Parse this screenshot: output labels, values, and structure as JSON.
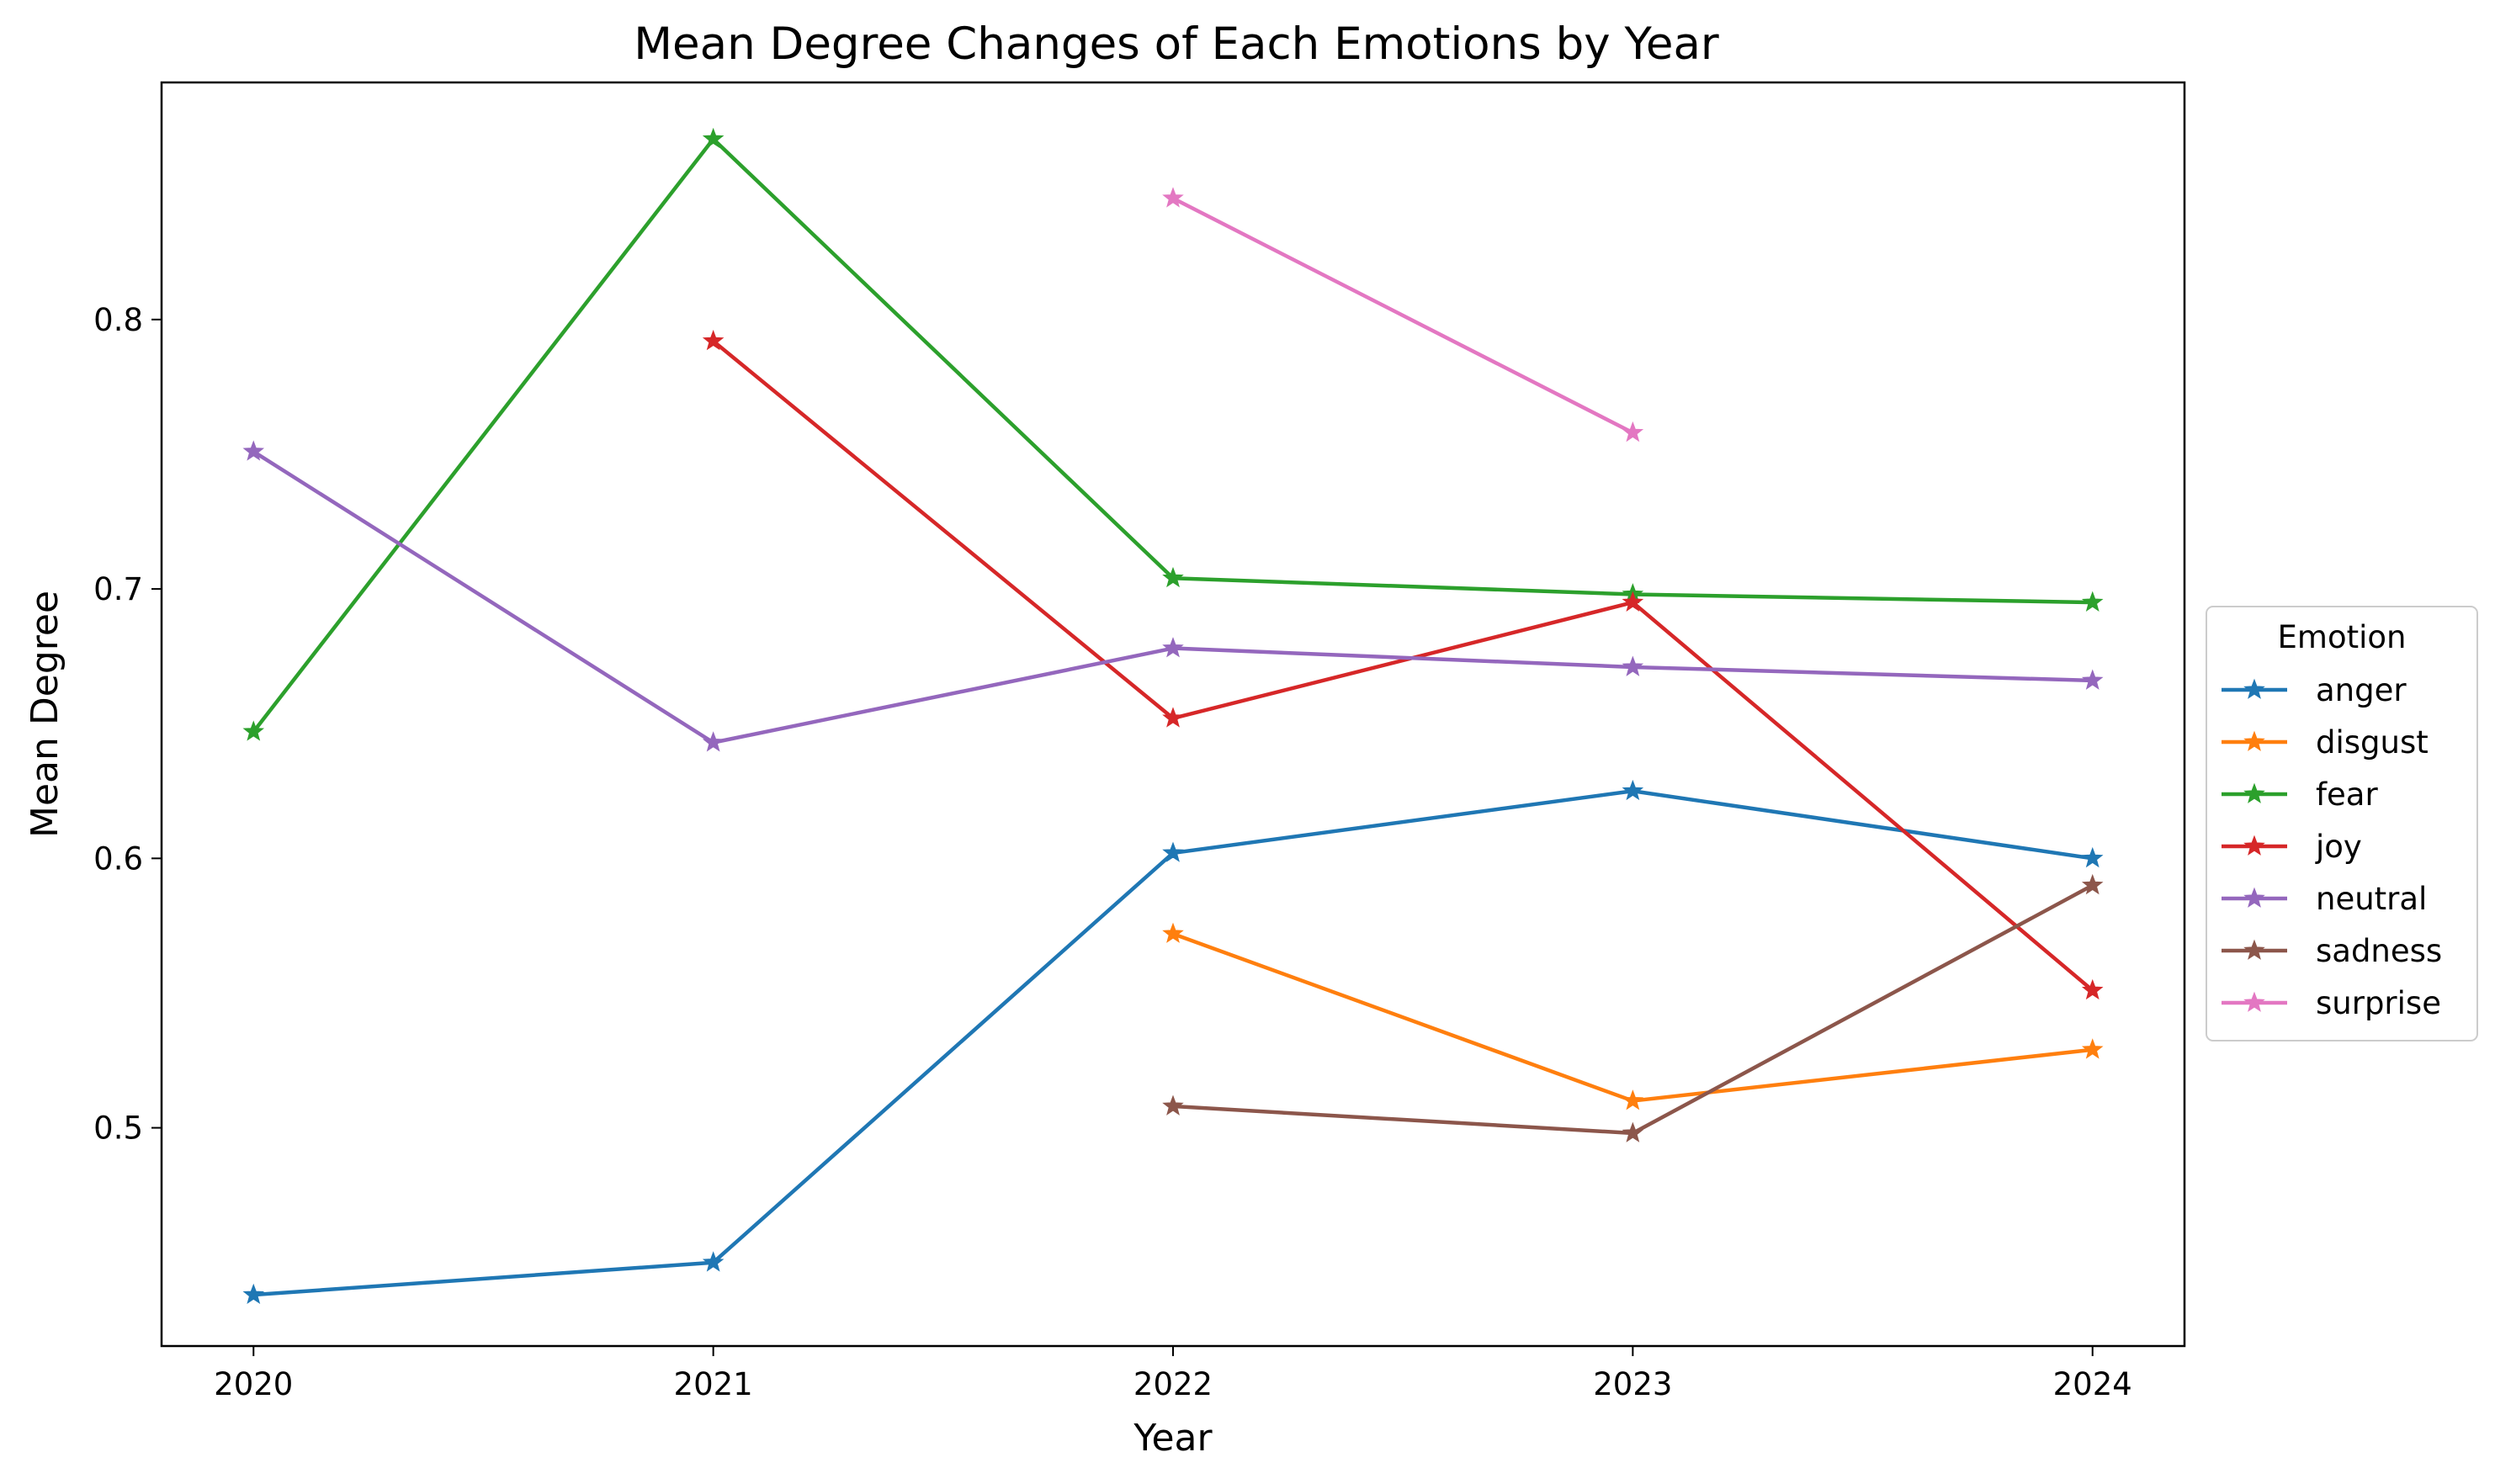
{
  "chart_data": {
    "type": "line",
    "title": "Mean Degree Changes of Each Emotions by Year",
    "xlabel": "Year",
    "ylabel": "Mean Degree",
    "x": [
      2020,
      2021,
      2022,
      2023,
      2024
    ],
    "x_tick_labels": [
      "2020",
      "2021",
      "2022",
      "2023",
      "2024"
    ],
    "xlim": [
      2019.8,
      2024.2
    ],
    "ylim": [
      0.419,
      0.888
    ],
    "y_ticks": [
      0.5,
      0.6,
      0.7,
      0.8
    ],
    "y_tick_labels": [
      "0.5",
      "0.6",
      "0.7",
      "0.8"
    ],
    "grid": false,
    "marker": "star",
    "legend": {
      "title": "Emotion",
      "placement": "center-right-outside"
    },
    "series": [
      {
        "name": "anger",
        "color": "#1f77b4",
        "values": [
          0.438,
          0.45,
          0.602,
          0.625,
          0.6
        ]
      },
      {
        "name": "disgust",
        "color": "#ff7f0e",
        "values": [
          null,
          null,
          0.572,
          0.51,
          0.529
        ]
      },
      {
        "name": "fear",
        "color": "#2ca02c",
        "values": [
          0.647,
          0.867,
          0.704,
          0.698,
          0.695
        ]
      },
      {
        "name": "joy",
        "color": "#d62728",
        "values": [
          null,
          0.792,
          0.652,
          0.695,
          0.551
        ]
      },
      {
        "name": "neutral",
        "color": "#9467bd",
        "values": [
          0.751,
          0.643,
          0.678,
          0.671,
          0.666
        ]
      },
      {
        "name": "sadness",
        "color": "#8c564b",
        "values": [
          null,
          null,
          0.508,
          0.498,
          0.59
        ]
      },
      {
        "name": "surprise",
        "color": "#e377c2",
        "values": [
          null,
          null,
          0.845,
          0.758,
          null
        ]
      }
    ]
  }
}
